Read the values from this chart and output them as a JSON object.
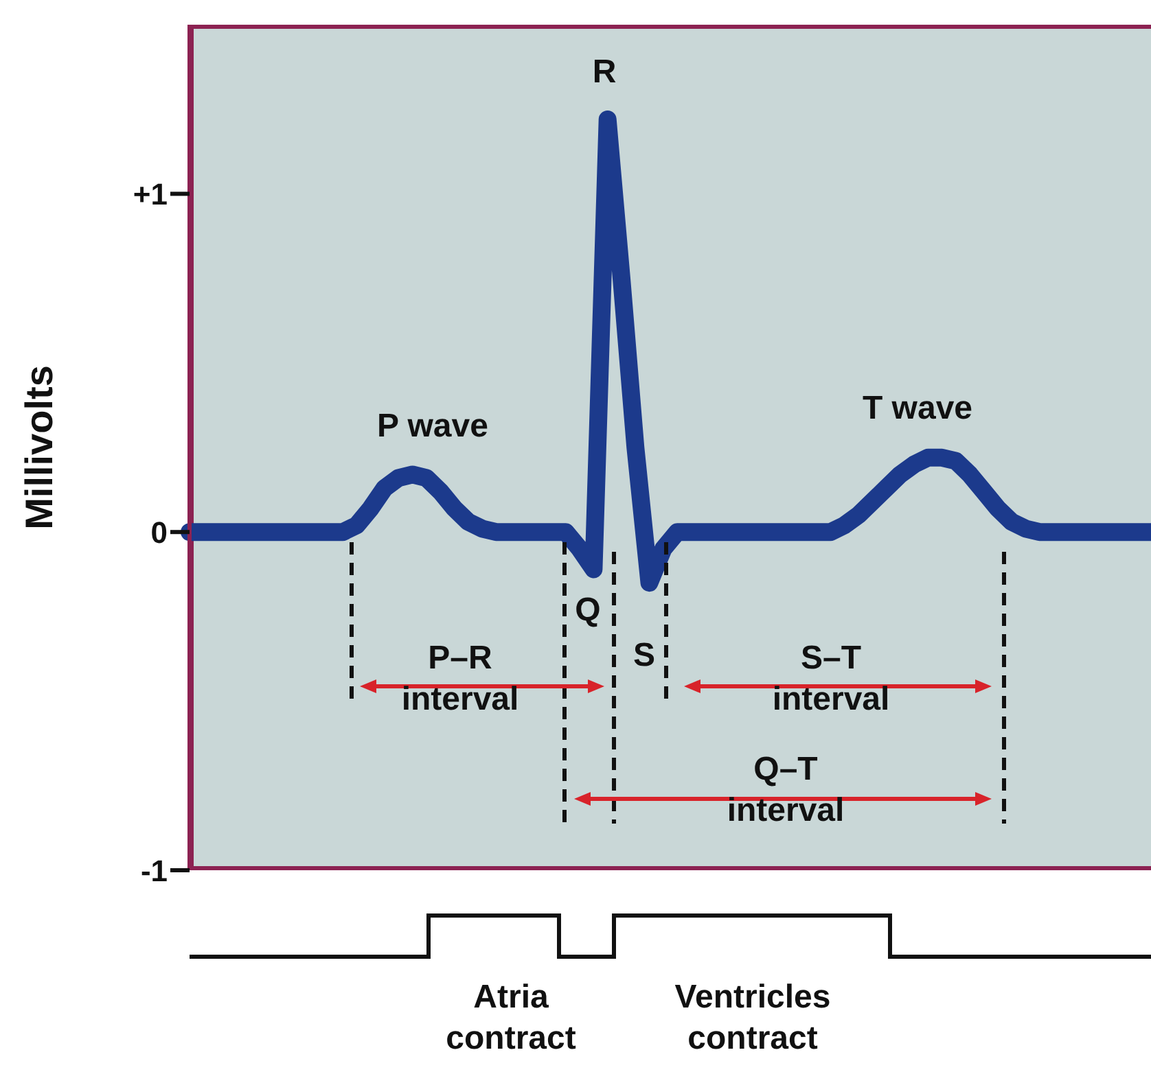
{
  "chart_data": {
    "type": "line",
    "ylabel": "Millivolts",
    "ylim": [
      -1,
      1.5
    ],
    "yticks": [
      {
        "value": 1,
        "label": "+1"
      },
      0,
      -1
    ],
    "color": "#1c3a8c",
    "categories": [
      null,
      null,
      null,
      null,
      null,
      null,
      null,
      null,
      null,
      null,
      null,
      null,
      null,
      null,
      null,
      null,
      null,
      null,
      null,
      null,
      null,
      null,
      null,
      null,
      null,
      null,
      null,
      null,
      null,
      null,
      null,
      null,
      null,
      null,
      null,
      null,
      null,
      null,
      null,
      null,
      null,
      null,
      null,
      null,
      null,
      null,
      null,
      null,
      null,
      null,
      null,
      null,
      null,
      null,
      null,
      null,
      null,
      null,
      null,
      null,
      null,
      null,
      null,
      null,
      null,
      null,
      null,
      null,
      null,
      null
    ],
    "values": [
      0,
      0,
      0,
      0,
      0,
      0,
      0,
      0,
      0,
      0,
      0,
      0,
      0.02,
      0.07,
      0.13,
      0.16,
      0.17,
      0.16,
      0.12,
      0.07,
      0.03,
      0.01,
      0,
      0,
      0,
      0,
      0,
      0,
      -0.05,
      -0.11,
      1.22,
      0.75,
      0.25,
      -0.15,
      -0.05,
      0,
      0,
      0,
      0,
      0,
      0,
      0,
      0,
      0,
      0,
      0,
      0,
      0.02,
      0.05,
      0.09,
      0.13,
      0.17,
      0.2,
      0.22,
      0.22,
      0.21,
      0.17,
      0.12,
      0.07,
      0.03,
      0.01,
      0,
      0,
      0,
      0,
      0,
      0,
      0,
      0,
      0
    ],
    "annotations": [
      "R",
      "P wave",
      "T wave",
      "Q",
      "S",
      "P–R interval",
      "S–T interval",
      "Q–T interval",
      "Atria contract",
      "Ventricles contract"
    ]
  }
}
